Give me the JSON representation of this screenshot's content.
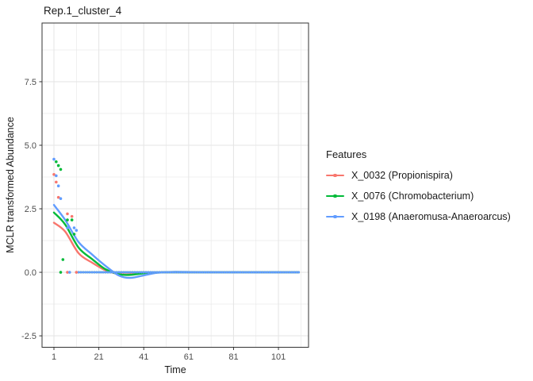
{
  "chart_data": {
    "type": "scatter",
    "title": "Rep.1_cluster_4",
    "xlabel": "Time",
    "ylabel": "MCLR transformed Abundance",
    "x_ticks": [
      1,
      21,
      41,
      61,
      81,
      101
    ],
    "x_minor_ticks": [
      11,
      31,
      51,
      71,
      91,
      111
    ],
    "y_ticks": [
      7.5,
      5.0,
      2.5,
      0.0,
      -2.5
    ],
    "y_minor_ticks": [
      8.75,
      6.25,
      3.75,
      1.25,
      -1.25
    ],
    "xlim": [
      -4.3,
      114.4
    ],
    "ylim": [
      -2.95,
      9.81
    ],
    "grid": true,
    "panel_border_color": "#333333",
    "gridline_color": "#e6e6e6",
    "tick_label_color": "#4d4d4d",
    "legend": {
      "title": "Features",
      "position": "right"
    },
    "series": [
      {
        "name": "X_0032",
        "label": "X_0032 (Propionispira)",
        "color": "#F8766D",
        "points": [
          [
            1,
            3.85
          ],
          [
            2,
            3.55
          ],
          [
            3,
            2.95
          ],
          [
            7,
            2.3
          ],
          [
            9,
            2.2
          ],
          [
            7,
            0
          ],
          [
            11,
            0
          ]
        ],
        "zero_run": {
          "from": 12,
          "to": 110,
          "value": 0
        },
        "smooth": [
          [
            1,
            1.95
          ],
          [
            6,
            1.6
          ],
          [
            12,
            0.75
          ],
          [
            18,
            0.38
          ],
          [
            24,
            0.08
          ],
          [
            30,
            -0.07
          ],
          [
            35,
            -0.08
          ],
          [
            42,
            -0.02
          ],
          [
            50,
            0
          ],
          [
            70,
            0
          ],
          [
            110,
            0
          ]
        ]
      },
      {
        "name": "X_0076",
        "label": "X_0076 (Chromobacterium)",
        "color": "#00BA38",
        "points": [
          [
            2,
            4.35
          ],
          [
            3,
            4.2
          ],
          [
            4,
            4.05
          ],
          [
            7,
            2.06
          ],
          [
            9,
            2.06
          ],
          [
            10,
            1.5
          ],
          [
            5,
            0.5
          ],
          [
            4,
            0
          ]
        ],
        "zero_run": {
          "from": 12,
          "to": 110,
          "value": 0
        },
        "smooth": [
          [
            1,
            2.35
          ],
          [
            6,
            1.88
          ],
          [
            12,
            0.97
          ],
          [
            18,
            0.52
          ],
          [
            24,
            0.12
          ],
          [
            30,
            -0.08
          ],
          [
            35,
            -0.1
          ],
          [
            42,
            -0.03
          ],
          [
            50,
            0
          ],
          [
            70,
            0
          ],
          [
            110,
            0
          ]
        ]
      },
      {
        "name": "X_0198",
        "label": "X_0198 (Anaeromusa-Anaeroarcus)",
        "color": "#619CFF",
        "points": [
          [
            1,
            4.45
          ],
          [
            2,
            3.8
          ],
          [
            3,
            3.4
          ],
          [
            4,
            2.9
          ],
          [
            7,
            1.75
          ],
          [
            10,
            1.75
          ],
          [
            11,
            1.65
          ],
          [
            8,
            0
          ]
        ],
        "zero_run": {
          "from": 12,
          "to": 110,
          "value": 0
        },
        "smooth": [
          [
            1,
            2.65
          ],
          [
            6,
            2.06
          ],
          [
            12,
            1.19
          ],
          [
            18,
            0.7
          ],
          [
            24,
            0.25
          ],
          [
            30,
            -0.13
          ],
          [
            35,
            -0.22
          ],
          [
            41,
            -0.12
          ],
          [
            47,
            -0.02
          ],
          [
            55,
            0.02
          ],
          [
            70,
            0
          ],
          [
            110,
            0
          ]
        ]
      }
    ]
  }
}
